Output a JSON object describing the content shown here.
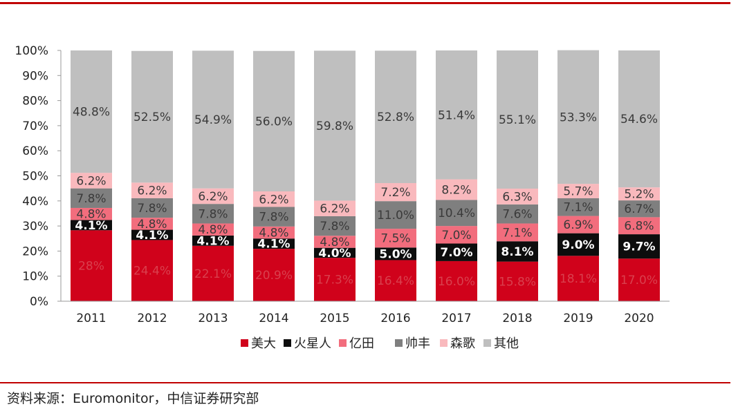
{
  "chart_data": {
    "type": "bar",
    "stacked": true,
    "percent": true,
    "categories": [
      "2011",
      "2012",
      "2013",
      "2014",
      "2015",
      "2016",
      "2017",
      "2018",
      "2019",
      "2020"
    ],
    "series": [
      {
        "name": "美大",
        "color": "#d0021b",
        "labels": [
          "28%",
          "24.4%",
          "22.1%",
          "20.9%",
          "17.3%",
          "16.4%",
          "16.0%",
          "15.8%",
          "18.1%",
          "17.0%"
        ],
        "values": [
          28.3,
          24.4,
          22.1,
          20.9,
          17.3,
          16.4,
          16.0,
          15.8,
          18.1,
          17.0
        ]
      },
      {
        "name": "火星人",
        "color": "#0d0d0d",
        "labels": [
          "4.1%",
          "4.1%",
          "4.1%",
          "4.1%",
          "4.0%",
          "5.0%",
          "7.0%",
          "8.1%",
          "9.0%",
          "9.7%"
        ],
        "values": [
          4.1,
          4.1,
          4.1,
          4.1,
          4.0,
          5.0,
          7.0,
          8.1,
          9.0,
          9.7
        ]
      },
      {
        "name": "亿田",
        "color": "#f26d7d",
        "labels": [
          "4.8%",
          "4.8%",
          "4.8%",
          "4.8%",
          "4.8%",
          "7.5%",
          "7.0%",
          "7.1%",
          "6.9%",
          "6.8%"
        ],
        "values": [
          4.8,
          4.8,
          4.8,
          4.8,
          4.8,
          7.5,
          7.0,
          7.1,
          6.9,
          6.8
        ]
      },
      {
        "name": "帅丰",
        "color": "#7f7f7f",
        "labels": [
          "7.8%",
          "7.8%",
          "7.8%",
          "7.8%",
          "7.8%",
          "11.0%",
          "10.4%",
          "7.6%",
          "7.1%",
          "6.7%"
        ],
        "values": [
          7.8,
          7.8,
          7.8,
          7.8,
          7.8,
          11.0,
          10.4,
          7.6,
          7.1,
          6.7
        ]
      },
      {
        "name": "森歌",
        "color": "#f9b9bd",
        "labels": [
          "6.2%",
          "6.2%",
          "6.2%",
          "6.2%",
          "6.2%",
          "7.2%",
          "8.2%",
          "6.3%",
          "5.7%",
          "5.2%"
        ],
        "values": [
          6.2,
          6.2,
          6.2,
          6.2,
          6.2,
          7.2,
          8.2,
          6.3,
          5.7,
          5.2
        ]
      },
      {
        "name": "其他",
        "color": "#bfbfbf",
        "labels": [
          "48.8%",
          "52.5%",
          "54.9%",
          "56.0%",
          "59.8%",
          "52.8%",
          "51.4%",
          "55.1%",
          "53.3%",
          "54.6%"
        ],
        "values": [
          48.8,
          52.5,
          54.9,
          56.0,
          59.8,
          52.8,
          51.4,
          55.1,
          53.3,
          54.6
        ]
      }
    ],
    "label_colors": [
      "#d9404e",
      "#ffffff",
      "#3a3a3a",
      "#3a3a3a",
      "#3a3a3a",
      "#3a3a3a"
    ],
    "yticks": [
      "0%",
      "10%",
      "20%",
      "30%",
      "40%",
      "50%",
      "60%",
      "70%",
      "80%",
      "90%",
      "100%"
    ],
    "ylim": [
      0,
      100
    ],
    "legend_position": "bottom",
    "title": "",
    "xlabel": "",
    "ylabel": ""
  },
  "footer": {
    "source": "资料来源：Euromonitor，中信证券研究部"
  },
  "colors": {
    "rule": "#c00000",
    "axis": "#999999"
  }
}
